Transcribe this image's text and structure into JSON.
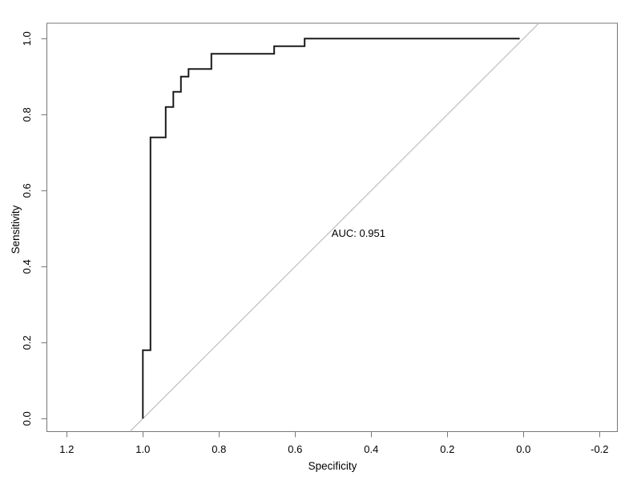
{
  "figure": {
    "background_color": "#ffffff",
    "kind": "R base-graphics ROC plot"
  },
  "chart_data": {
    "type": "line",
    "subtype": "roc-step-curve",
    "title": "",
    "xlabel": "Specificity",
    "ylabel": "Sensitivity",
    "x_axis_reversed": true,
    "grid": false,
    "legend": "none",
    "xlim": [
      1.2522,
      -0.2467
    ],
    "ylim": [
      -0.0341,
      1.0406
    ],
    "x_ticks": [
      1.2,
      1.0,
      0.8,
      0.6,
      0.4,
      0.2,
      0.0,
      -0.2
    ],
    "x_tick_labels": [
      "1.2",
      "1.0",
      "0.8",
      "0.6",
      "0.4",
      "0.2",
      "0.0",
      "-0.2"
    ],
    "y_ticks": [
      0.0,
      0.2,
      0.4,
      0.6,
      0.8,
      1.0
    ],
    "y_tick_labels": [
      "0.0",
      "0.2",
      "0.4",
      "0.6",
      "0.8",
      "1.0"
    ],
    "series": [
      {
        "name": "ROC curve",
        "color": "#1a1a1a",
        "stroke_width": 2,
        "points_spec_sens": [
          [
            1.0,
            0.0
          ],
          [
            1.0,
            0.18
          ],
          [
            0.98,
            0.18
          ],
          [
            0.98,
            0.74
          ],
          [
            0.94,
            0.74
          ],
          [
            0.94,
            0.82
          ],
          [
            0.92,
            0.82
          ],
          [
            0.92,
            0.86
          ],
          [
            0.9,
            0.86
          ],
          [
            0.9,
            0.9
          ],
          [
            0.88,
            0.9
          ],
          [
            0.88,
            0.92
          ],
          [
            0.82,
            0.92
          ],
          [
            0.82,
            0.96
          ],
          [
            0.655,
            0.96
          ],
          [
            0.655,
            0.98
          ],
          [
            0.575,
            0.98
          ],
          [
            0.575,
            1.0
          ],
          [
            0.01,
            1.0
          ]
        ]
      }
    ],
    "reference_line": {
      "name": "chance diagonal",
      "from_spec_sens": [
        1.0,
        0.0
      ],
      "to_spec_sens": [
        0.0,
        1.0
      ],
      "extends_to_plot_box": true,
      "color": "#b3b3b3",
      "stroke_width": 1
    },
    "annotation": {
      "text": "AUC: 0.951",
      "auc_value": 0.951,
      "at_spec": 0.5,
      "at_sens": 0.5,
      "align": "left"
    },
    "box_color": "#777777",
    "tick_color": "#777777",
    "text_color": "#000000"
  }
}
